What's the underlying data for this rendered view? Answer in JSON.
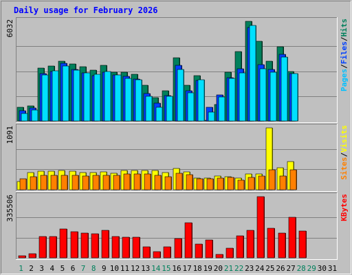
{
  "chart_data": {
    "type": "bar",
    "title": "Daily usage for February 2026",
    "days": [
      "1",
      "2",
      "3",
      "4",
      "5",
      "6",
      "7",
      "8",
      "9",
      "10",
      "11",
      "12",
      "13",
      "14",
      "15",
      "16",
      "17",
      "18",
      "19",
      "20",
      "21",
      "22",
      "23",
      "24",
      "25",
      "26",
      "27",
      "28",
      "29",
      "30",
      "31"
    ],
    "weekend_days": [
      "1",
      "7",
      "8",
      "14",
      "15",
      "21",
      "22",
      "28",
      "29"
    ],
    "panels": [
      {
        "name": "pages-files-hits",
        "ymax_label": "6032",
        "ylim": [
          0,
          6032
        ],
        "legend": [
          {
            "text": "Pages",
            "color": "#00c0ff"
          },
          {
            "text": "/",
            "color": "#000000"
          },
          {
            "text": "Files",
            "color": "#0040ff"
          },
          {
            "text": "/",
            "color": "#000000"
          },
          {
            "text": "Hits",
            "color": "#00805c"
          }
        ],
        "series": [
          {
            "name": "Hits",
            "color": "#00805c",
            "values": [
              820,
              930,
              3190,
              3340,
              3600,
              3460,
              3300,
              3090,
              3390,
              2970,
              2970,
              2810,
              2150,
              1400,
              1810,
              3820,
              2150,
              2730,
              6,
              980,
              2960,
              4220,
              6032,
              4840,
              3630,
              4500,
              2980,
              0,
              0,
              0,
              0
            ]
          },
          {
            "name": "Files",
            "color": "#0040ff",
            "values": [
              640,
              780,
              2880,
              2980,
              3480,
              3130,
              2930,
              2750,
              2960,
              2800,
              2690,
              2520,
              1650,
              1080,
              1520,
              3380,
              1850,
              2440,
              820,
              1600,
              2610,
              3150,
              5650,
              3420,
              3140,
              4050,
              2870,
              0,
              0,
              0,
              0
            ]
          },
          {
            "name": "Pages",
            "color": "#00e0ff",
            "values": [
              470,
              680,
              2770,
              3020,
              3330,
              3080,
              2900,
              2820,
              3010,
              2770,
              2570,
              2510,
              1480,
              850,
              1500,
              3140,
              1700,
              2480,
              560,
              1440,
              2590,
              2900,
              5800,
              3170,
              2960,
              3880,
              2860,
              0,
              0,
              0,
              0
            ]
          }
        ]
      },
      {
        "name": "sites-visits",
        "ymax_label": "1091",
        "ylim": [
          0,
          1091
        ],
        "legend": [
          {
            "text": "Sites",
            "color": "#ff8000"
          },
          {
            "text": "/",
            "color": "#000000"
          },
          {
            "text": "Visits",
            "color": "#ffff00"
          }
        ],
        "series": [
          {
            "name": "Visits",
            "color": "#ffff00",
            "values": [
              145,
              305,
              330,
              330,
              345,
              330,
              300,
              300,
              310,
              295,
              340,
              340,
              345,
              335,
              300,
              375,
              320,
              210,
              210,
              245,
              235,
              205,
              275,
              275,
              1091,
              390,
              495,
              0,
              0,
              0,
              0
            ]
          },
          {
            "name": "Sites",
            "color": "#ff8000",
            "values": [
              195,
              235,
              255,
              255,
              250,
              250,
              245,
              255,
              255,
              255,
              275,
              275,
              280,
              250,
              235,
              295,
              270,
              195,
              195,
              205,
              215,
              175,
              215,
              240,
              350,
              240,
              350,
              0,
              0,
              0,
              0
            ]
          }
        ]
      },
      {
        "name": "kbytes",
        "ymax_label": "335506",
        "ylim": [
          0,
          335506
        ],
        "legend": [
          {
            "text": "KBytes",
            "color": "#ff0000"
          }
        ],
        "series": [
          {
            "name": "KBytes",
            "color": "#ff0000",
            "values": [
              10000,
              22000,
              117000,
              117000,
              160000,
              143000,
              136000,
              133000,
              149000,
              117000,
              113000,
              112000,
              60000,
              33000,
              62000,
              104000,
              191000,
              77000,
              97000,
              20000,
              54000,
              120000,
              149000,
              335506,
              162000,
              136000,
              224000,
              148000,
              0,
              0,
              0
            ]
          }
        ]
      }
    ]
  }
}
